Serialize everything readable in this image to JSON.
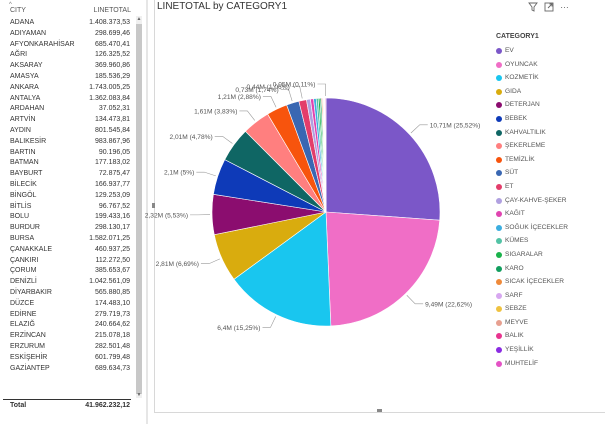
{
  "table": {
    "header_city": "CITY",
    "header_value": "LINETOTAL",
    "sort_indicator": "^",
    "rows": [
      [
        "ADANA",
        "1.408.373,53"
      ],
      [
        "ADIYAMAN",
        "298.699,46"
      ],
      [
        "AFYONKARAHİSAR",
        "685.470,41"
      ],
      [
        "AĞRI",
        "126.325,52"
      ],
      [
        "AKSARAY",
        "369.960,86"
      ],
      [
        "AMASYA",
        "185.536,29"
      ],
      [
        "ANKARA",
        "1.743.005,25"
      ],
      [
        "ANTALYA",
        "1.362.083,84"
      ],
      [
        "ARDAHAN",
        "37.052,31"
      ],
      [
        "ARTVİN",
        "134.473,81"
      ],
      [
        "AYDIN",
        "801.545,84"
      ],
      [
        "BALIKESİR",
        "983.867,96"
      ],
      [
        "BARTIN",
        "90.196,05"
      ],
      [
        "BATMAN",
        "177.183,02"
      ],
      [
        "BAYBURT",
        "72.875,47"
      ],
      [
        "BİLECİK",
        "166.937,77"
      ],
      [
        "BİNGÖL",
        "129.253,09"
      ],
      [
        "BİTLİS",
        "96.767,52"
      ],
      [
        "BOLU",
        "199.433,16"
      ],
      [
        "BURDUR",
        "298.130,17"
      ],
      [
        "BURSA",
        "1.582.071,25"
      ],
      [
        "ÇANAKKALE",
        "460.937,25"
      ],
      [
        "ÇANKIRI",
        "112.272,50"
      ],
      [
        "ÇORUM",
        "385.653,67"
      ],
      [
        "DENİZLİ",
        "1.042.561,09"
      ],
      [
        "DİYARBAKIR",
        "565.880,85"
      ],
      [
        "DÜZCE",
        "174.483,10"
      ],
      [
        "EDİRNE",
        "279.719,73"
      ],
      [
        "ELAZIĞ",
        "240.664,62"
      ],
      [
        "ERZİNCAN",
        "215.078,18"
      ],
      [
        "ERZURUM",
        "282.501,48"
      ],
      [
        "ESKİŞEHİR",
        "601.799,48"
      ],
      [
        "GAZİANTEP",
        "689.634,73"
      ]
    ],
    "total_label": "Total",
    "total_value": "41.962.232,12"
  },
  "toolbar": {
    "filter_icon": "filter-icon",
    "focus_icon": "focus-mode-icon",
    "more_icon": "more-options-icon"
  },
  "chart_data": {
    "type": "pie",
    "title": "LINETOTAL by CATEGORY1",
    "legend_title": "CATEGORY1",
    "legend_position": "right",
    "slices": [
      {
        "name": "EV",
        "value": 10.71,
        "color": "#7B57C8",
        "label": "10,71M (25,52%)"
      },
      {
        "name": "OYUNCAK",
        "value": 9.49,
        "color": "#F06EC6",
        "label": "9,49M (22,62%)"
      },
      {
        "name": "KOZMETİK",
        "value": 6.4,
        "color": "#19C6EF",
        "label": "6,4M (15,25%)"
      },
      {
        "name": "GIDA",
        "value": 2.81,
        "color": "#D9AC0E",
        "label": "2,81M (6,69%)"
      },
      {
        "name": "DETERJAN",
        "value": 2.32,
        "color": "#8B0D6F",
        "label": "2,32M (5,53%)"
      },
      {
        "name": "BEBEK",
        "value": 2.1,
        "color": "#0E3AB8",
        "label": "2,1M (5%)"
      },
      {
        "name": "KAHVALTILIK",
        "value": 2.01,
        "color": "#0F6664",
        "label": "2,01M (4,78%)"
      },
      {
        "name": "ŞEKERLEME",
        "value": 1.61,
        "color": "#FF7F7F",
        "label": "1,61M (3,83%)"
      },
      {
        "name": "TEMİZLİK",
        "value": 1.21,
        "color": "#F7540D",
        "label": "1,21M (2,88%)"
      },
      {
        "name": "SÜT",
        "value": 0.73,
        "color": "#3A67B2",
        "label": "0,73M (1,74%)"
      },
      {
        "name": "ET",
        "value": 0.44,
        "color": "#E33D6B",
        "label": "0,44M (1,06%)"
      },
      {
        "name": "ÇAY-KAHVE-ŞEKER",
        "value": 0.23,
        "color": "#B0A0E0",
        "label": ""
      },
      {
        "name": "KAĞIT",
        "value": 0.18,
        "color": "#E044B0",
        "label": ""
      },
      {
        "name": "SOĞUK İÇECEKLER",
        "value": 0.15,
        "color": "#3BAEE0",
        "label": ""
      },
      {
        "name": "KÜMES",
        "value": 0.12,
        "color": "#52C3A5",
        "label": ""
      },
      {
        "name": "SIGARALAR",
        "value": 0.1,
        "color": "#1AB24B",
        "label": ""
      },
      {
        "name": "KARO",
        "value": 0.08,
        "color": "#119E5E",
        "label": ""
      },
      {
        "name": "SICAK İÇECEKLER",
        "value": 0.06,
        "color": "#EF8A3A",
        "label": ""
      },
      {
        "name": "SARF",
        "value": 0.05,
        "color": "#D7A7F0",
        "label": ""
      },
      {
        "name": "SEBZE",
        "value": 0.04,
        "color": "#EFC240",
        "label": ""
      },
      {
        "name": "MEYVE",
        "value": 0.03,
        "color": "#E7A090",
        "label": ""
      },
      {
        "name": "BALIK",
        "value": 0.02,
        "color": "#E8348F",
        "label": ""
      },
      {
        "name": "YEŞİLLİK",
        "value": 0.015,
        "color": "#8A2BE2",
        "label": ""
      },
      {
        "name": "MUHTELİF",
        "value": 0.05,
        "color": "#E452C5",
        "label": "0,05M (0,11%)"
      }
    ]
  }
}
